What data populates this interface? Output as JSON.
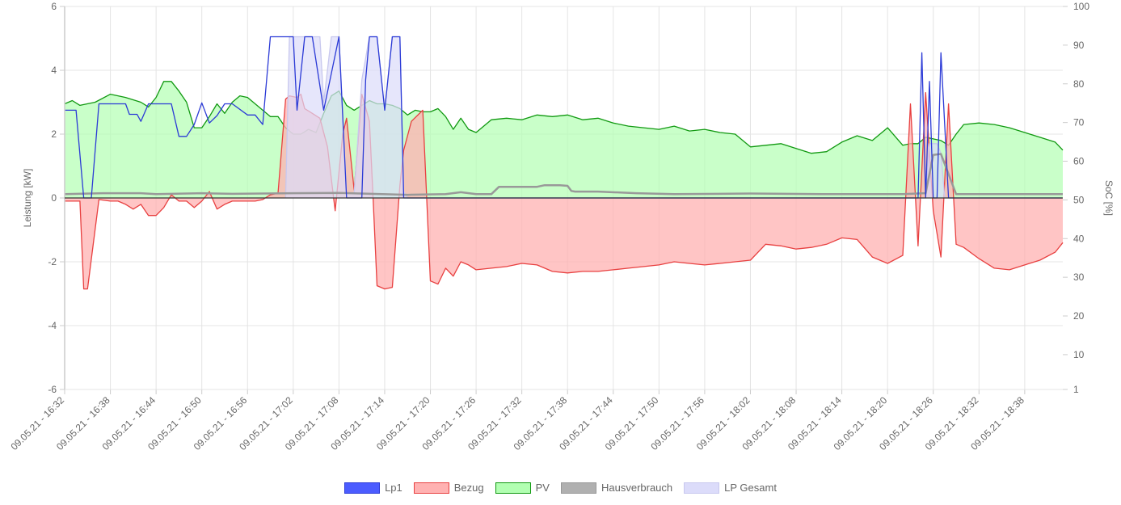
{
  "chart_data": {
    "type": "area",
    "ylabel_left": "Leistung [kW]",
    "ylabel_right": "SoC [%]",
    "ylim_left": [
      -6,
      6
    ],
    "ylim_right": [
      1,
      100
    ],
    "left_ticks": [
      "6",
      "4",
      "2",
      "0",
      "-2",
      "-4",
      "-6"
    ],
    "right_ticks": [
      "100",
      "90",
      "80",
      "70",
      "60",
      "50",
      "40",
      "30",
      "20",
      "10",
      "1"
    ],
    "x_tick_labels": [
      "09.05.21 - 16:32",
      "09.05.21 - 16:38",
      "09.05.21 - 16:44",
      "09.05.21 - 16:50",
      "09.05.21 - 16:56",
      "09.05.21 - 17:02",
      "09.05.21 - 17:08",
      "09.05.21 - 17:14",
      "09.05.21 - 17:20",
      "09.05.21 - 17:26",
      "09.05.21 - 17:32",
      "09.05.21 - 17:38",
      "09.05.21 - 17:44",
      "09.05.21 - 17:50",
      "09.05.21 - 17:56",
      "09.05.21 - 18:02",
      "09.05.21 - 18:08",
      "09.05.21 - 18:14",
      "09.05.21 - 18:20",
      "09.05.21 - 18:26",
      "09.05.21 - 18:32",
      "09.05.21 - 18:38"
    ],
    "x_tick_minutes": [
      0,
      6,
      12,
      18,
      24,
      30,
      36,
      42,
      48,
      54,
      60,
      66,
      72,
      78,
      84,
      90,
      96,
      102,
      108,
      114,
      120,
      126
    ],
    "x_range_minutes": [
      0,
      131
    ],
    "x_origin": "09.05.21 16:32",
    "grid": true,
    "legend_position": "bottom",
    "series": [
      {
        "name": "Lp1",
        "color": "#2b3ad6",
        "fill": "#4b5cff",
        "fill_opacity": 0.9,
        "style": "line",
        "x": [
          0,
          1.5,
          2.5,
          3.5,
          4.5,
          6,
          8,
          8.5,
          9.5,
          10,
          11,
          12,
          14,
          15,
          16,
          17,
          18,
          19,
          20,
          21,
          22,
          24,
          25,
          26,
          27,
          28,
          29,
          30,
          30.5,
          31.5,
          32.5,
          34,
          36,
          37,
          37.5,
          38.5,
          39,
          39.5,
          40,
          40.5,
          41,
          42,
          43,
          44,
          44.5,
          45,
          46,
          46.5,
          47,
          47.5,
          48,
          48.5,
          60,
          70,
          80,
          90,
          100,
          110,
          110.5,
          111,
          111.5,
          112,
          112.5,
          113,
          113.5,
          114,
          114.5,
          115,
          116,
          130.9
        ],
        "y": [
          2.75,
          2.75,
          0,
          0,
          2.95,
          2.95,
          2.95,
          2.62,
          2.62,
          2.4,
          2.95,
          2.95,
          2.95,
          1.93,
          1.93,
          2.3,
          2.98,
          2.35,
          2.58,
          2.95,
          2.95,
          2.6,
          2.6,
          2.3,
          5.05,
          5.05,
          5.05,
          5.05,
          2.75,
          5.05,
          5.05,
          2.75,
          5.05,
          0,
          0,
          0,
          0,
          3.7,
          5.05,
          5.05,
          5.05,
          2.75,
          5.05,
          5.05,
          0,
          0,
          0,
          0,
          0,
          0,
          0,
          0,
          0,
          0,
          0,
          0,
          0,
          0,
          0,
          0,
          0,
          0,
          4.55,
          0,
          3.65,
          0,
          0,
          4.55,
          0,
          0
        ]
      },
      {
        "name": "Bezug",
        "color": "#e84040",
        "fill": "#ffb2b2",
        "fill_opacity": 1,
        "style": "area",
        "x": [
          0,
          1,
          2,
          2.5,
          3,
          4.5,
          6,
          7,
          8,
          9,
          10,
          11,
          12,
          13,
          14,
          15,
          16,
          17,
          18,
          19,
          20,
          21,
          22,
          23,
          24,
          25,
          26,
          27,
          28,
          29,
          29.5,
          30.5,
          31,
          31.5,
          32.5,
          33.5,
          34.5,
          35.5,
          36.5,
          37,
          38,
          39,
          40,
          40.5,
          41,
          42,
          43,
          44,
          44.5,
          45.5,
          47,
          48,
          49,
          50,
          51,
          52,
          53,
          54,
          56,
          58,
          60,
          62,
          64,
          66,
          68,
          70,
          72,
          74,
          76,
          78,
          80,
          82,
          84,
          86,
          88,
          90,
          92,
          94,
          96,
          98,
          100,
          102,
          104,
          106,
          108,
          110,
          111,
          112,
          113,
          114,
          115,
          116,
          117,
          118,
          120,
          122,
          124,
          126,
          128,
          130,
          131
        ],
        "y": [
          -0.1,
          -0.1,
          -0.1,
          -2.85,
          -2.85,
          -0.05,
          -0.1,
          -0.1,
          -0.2,
          -0.35,
          -0.2,
          -0.55,
          -0.55,
          -0.3,
          0.1,
          -0.1,
          -0.1,
          -0.3,
          -0.1,
          0.2,
          -0.35,
          -0.2,
          -0.1,
          -0.1,
          -0.1,
          -0.1,
          -0.05,
          0.1,
          0.15,
          3.1,
          3.2,
          3.15,
          3.25,
          2.8,
          2.65,
          2.5,
          1.6,
          -0.4,
          2.0,
          2.5,
          0.25,
          3.25,
          2.4,
          -0.1,
          -2.75,
          -2.85,
          -2.8,
          0.4,
          1.5,
          2.4,
          2.75,
          -2.6,
          -2.7,
          -2.2,
          -2.45,
          -2.0,
          -2.1,
          -2.25,
          -2.2,
          -2.15,
          -2.05,
          -2.1,
          -2.3,
          -2.35,
          -2.3,
          -2.3,
          -2.25,
          -2.2,
          -2.15,
          -2.1,
          -2.0,
          -2.05,
          -2.1,
          -2.05,
          -2.0,
          -1.95,
          -1.45,
          -1.5,
          -1.6,
          -1.55,
          -1.45,
          -1.25,
          -1.3,
          -1.85,
          -2.05,
          -1.8,
          2.95,
          -1.5,
          3.3,
          -0.4,
          -1.85,
          2.95,
          -1.45,
          -1.55,
          -1.9,
          -2.2,
          -2.25,
          -2.1,
          -1.95,
          -1.7,
          -1.4
        ]
      },
      {
        "name": "PV",
        "color": "#119911",
        "fill": "#b2ffb2",
        "fill_opacity": 1,
        "style": "area",
        "x": [
          0,
          1,
          2,
          4,
          6,
          8,
          10,
          11,
          12,
          13,
          14,
          15,
          16,
          17,
          18,
          19,
          20,
          21,
          22,
          23,
          24,
          25,
          26,
          27,
          28,
          29,
          30,
          31,
          32,
          33,
          34,
          35,
          36,
          37,
          38,
          39,
          40,
          41,
          42,
          43,
          44,
          45,
          46,
          47,
          48,
          49,
          50,
          51,
          52,
          53,
          54,
          56,
          58,
          60,
          62,
          64,
          66,
          68,
          70,
          72,
          74,
          76,
          78,
          80,
          82,
          84,
          86,
          88,
          90,
          92,
          94,
          96,
          98,
          100,
          102,
          104,
          106,
          108,
          110,
          111,
          112,
          113,
          114,
          115,
          116,
          117,
          118,
          120,
          122,
          124,
          126,
          128,
          130,
          131
        ],
        "y": [
          2.95,
          3.05,
          2.9,
          3.0,
          3.25,
          3.15,
          3.0,
          2.85,
          3.15,
          3.65,
          3.65,
          3.35,
          3.0,
          2.2,
          2.2,
          2.55,
          2.95,
          2.65,
          3.0,
          3.2,
          3.15,
          2.95,
          2.75,
          2.55,
          2.55,
          2.2,
          2.0,
          2.0,
          2.15,
          2.05,
          2.65,
          3.2,
          3.35,
          2.9,
          2.75,
          2.9,
          3.05,
          2.95,
          2.95,
          2.9,
          2.8,
          2.6,
          2.75,
          2.7,
          2.7,
          2.8,
          2.55,
          2.15,
          2.5,
          2.15,
          2.05,
          2.45,
          2.5,
          2.45,
          2.6,
          2.55,
          2.6,
          2.45,
          2.5,
          2.35,
          2.25,
          2.2,
          2.15,
          2.25,
          2.1,
          2.15,
          2.05,
          2.0,
          1.6,
          1.65,
          1.7,
          1.55,
          1.4,
          1.45,
          1.75,
          1.95,
          1.8,
          2.2,
          1.65,
          1.7,
          1.7,
          1.9,
          1.85,
          1.8,
          1.65,
          2.0,
          2.3,
          2.35,
          2.3,
          2.2,
          2.05,
          1.9,
          1.75,
          1.5
        ]
      },
      {
        "name": "Hausverbrauch",
        "color": "#999999",
        "fill": "#b0b0b0",
        "fill_opacity": 1,
        "style": "line",
        "x": [
          0,
          5,
          10,
          12,
          18,
          22,
          30,
          36,
          45,
          50,
          52,
          54,
          56,
          57,
          60,
          62,
          63,
          65,
          66,
          66.5,
          67,
          70,
          75,
          80,
          90,
          100,
          110,
          113,
          114,
          115,
          117,
          120,
          131
        ],
        "y": [
          0.12,
          0.15,
          0.15,
          0.12,
          0.15,
          0.13,
          0.15,
          0.16,
          0.1,
          0.12,
          0.18,
          0.12,
          0.12,
          0.35,
          0.35,
          0.35,
          0.4,
          0.4,
          0.38,
          0.22,
          0.2,
          0.2,
          0.15,
          0.12,
          0.14,
          0.12,
          0.12,
          0.15,
          1.35,
          1.38,
          0.12,
          0.12,
          0.12
        ]
      },
      {
        "name": "LP Gesamt",
        "color": "#c8c8ee",
        "fill": "#dcdcfa",
        "fill_opacity": 1,
        "style": "area",
        "x": [
          29,
          29.5,
          33.5,
          34,
          35,
          36,
          37,
          38,
          39,
          40,
          40.5,
          41,
          42,
          43,
          44,
          44.5,
          45,
          113,
          113.5,
          114,
          114.5,
          115,
          115.5,
          116
        ],
        "y": [
          0,
          5.05,
          5.05,
          3.0,
          5.05,
          5.05,
          0.15,
          0.15,
          3.7,
          5.05,
          5.05,
          5.05,
          2.75,
          5.05,
          5.05,
          0.2,
          0,
          0,
          1.7,
          1.7,
          1.7,
          1.4,
          0,
          0
        ]
      }
    ]
  }
}
